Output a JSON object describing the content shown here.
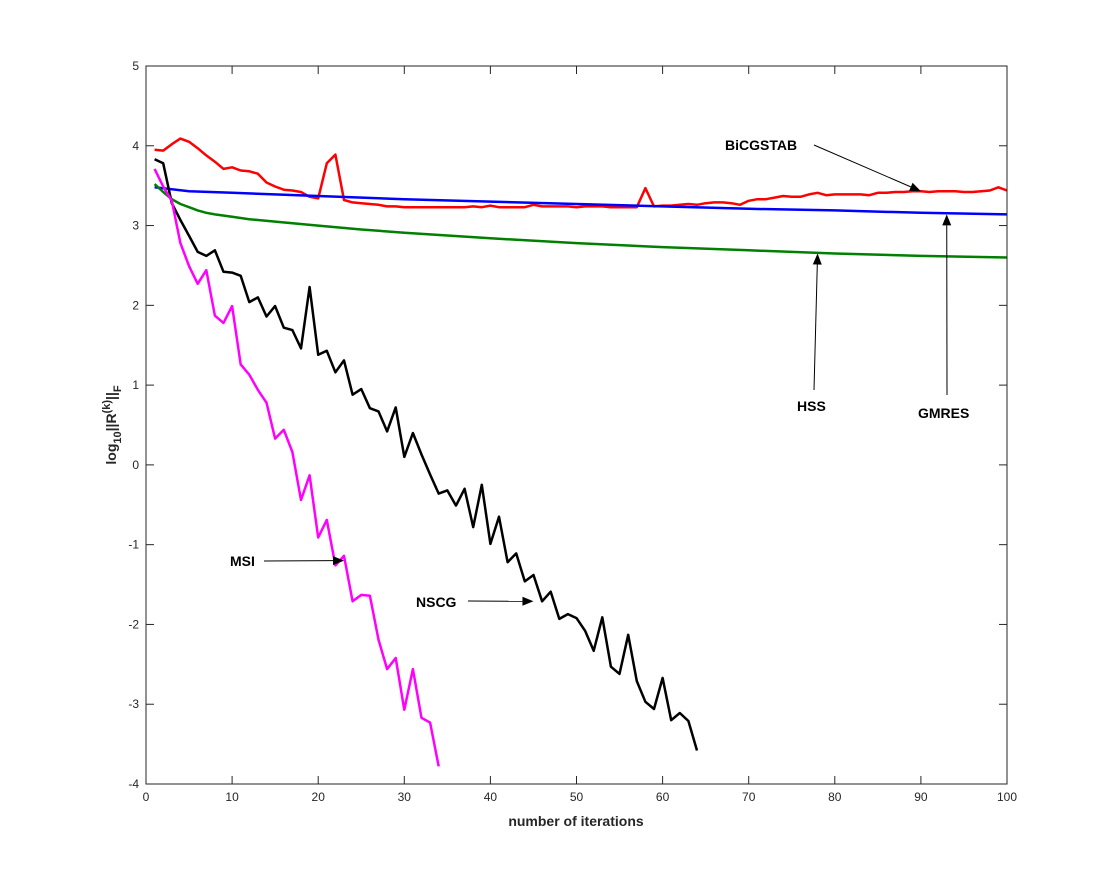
{
  "chart_data": {
    "type": "line",
    "xlabel": "number of iterations",
    "ylabel_base": "log",
    "ylabel_sub1": "10",
    "ylabel_mid": "||R",
    "ylabel_sup": "(k)",
    "ylabel_end": "||",
    "ylabel_sub2": "F",
    "xlim": [
      0,
      100
    ],
    "ylim": [
      -4,
      5
    ],
    "xticks": [
      0,
      10,
      20,
      30,
      40,
      50,
      60,
      70,
      80,
      90,
      100
    ],
    "yticks": [
      -4,
      -3,
      -2,
      -1,
      0,
      1,
      2,
      3,
      4,
      5
    ],
    "grid": false,
    "series": [
      {
        "name": "BiCGSTAB",
        "color": "#ff0000",
        "x": [
          1,
          2,
          3,
          4,
          5,
          6,
          7,
          8,
          9,
          10,
          11,
          12,
          13,
          14,
          15,
          16,
          17,
          18,
          19,
          20,
          21,
          22,
          23,
          24,
          25,
          26,
          27,
          28,
          29,
          30,
          31,
          32,
          33,
          34,
          35,
          36,
          37,
          38,
          39,
          40,
          41,
          42,
          43,
          44,
          45,
          46,
          47,
          48,
          49,
          50,
          51,
          52,
          53,
          54,
          55,
          56,
          57,
          58,
          59,
          60,
          61,
          62,
          63,
          64,
          65,
          66,
          67,
          68,
          69,
          70,
          71,
          72,
          73,
          74,
          75,
          76,
          77,
          78,
          79,
          80,
          81,
          82,
          83,
          84,
          85,
          86,
          87,
          88,
          89,
          90,
          91,
          92,
          93,
          94,
          95,
          96,
          97,
          98,
          99,
          100
        ],
        "y": [
          3.95,
          3.94,
          4.02,
          4.09,
          4.05,
          3.97,
          3.88,
          3.8,
          3.71,
          3.73,
          3.69,
          3.68,
          3.65,
          3.54,
          3.49,
          3.45,
          3.44,
          3.42,
          3.36,
          3.34,
          3.78,
          3.89,
          3.32,
          3.29,
          3.28,
          3.27,
          3.26,
          3.24,
          3.24,
          3.23,
          3.23,
          3.23,
          3.23,
          3.23,
          3.23,
          3.23,
          3.23,
          3.24,
          3.23,
          3.25,
          3.23,
          3.23,
          3.23,
          3.23,
          3.26,
          3.24,
          3.24,
          3.24,
          3.24,
          3.23,
          3.24,
          3.24,
          3.24,
          3.23,
          3.23,
          3.23,
          3.23,
          3.47,
          3.24,
          3.25,
          3.25,
          3.26,
          3.27,
          3.26,
          3.28,
          3.29,
          3.29,
          3.28,
          3.26,
          3.31,
          3.33,
          3.33,
          3.35,
          3.37,
          3.36,
          3.36,
          3.39,
          3.41,
          3.38,
          3.39,
          3.39,
          3.39,
          3.39,
          3.38,
          3.41,
          3.41,
          3.42,
          3.42,
          3.43,
          3.43,
          3.42,
          3.43,
          3.43,
          3.43,
          3.42,
          3.42,
          3.43,
          3.44,
          3.48,
          3.44
        ]
      },
      {
        "name": "GMRES",
        "color": "#0000ff",
        "x": [
          1,
          5,
          10,
          20,
          30,
          40,
          50,
          60,
          70,
          80,
          90,
          100
        ],
        "y": [
          3.48,
          3.43,
          3.41,
          3.37,
          3.33,
          3.3,
          3.27,
          3.24,
          3.21,
          3.19,
          3.16,
          3.14
        ]
      },
      {
        "name": "HSS",
        "color": "#008000",
        "x": [
          1,
          2,
          3,
          4,
          5,
          6,
          7,
          8,
          10,
          12,
          15,
          20,
          25,
          30,
          40,
          50,
          60,
          70,
          80,
          90,
          100
        ],
        "y": [
          3.52,
          3.42,
          3.33,
          3.27,
          3.23,
          3.19,
          3.16,
          3.14,
          3.11,
          3.08,
          3.05,
          3.0,
          2.95,
          2.91,
          2.84,
          2.78,
          2.73,
          2.69,
          2.65,
          2.62,
          2.6
        ]
      },
      {
        "name": "NSCG",
        "color": "#000000",
        "x": [
          1,
          2,
          3,
          4,
          5,
          6,
          7,
          8,
          9,
          10,
          11,
          12,
          13,
          14,
          15,
          16,
          17,
          18,
          19,
          20,
          21,
          22,
          23,
          24,
          25,
          26,
          27,
          28,
          29,
          30,
          31,
          32,
          33,
          34,
          35,
          36,
          37,
          38,
          39,
          40,
          41,
          42,
          43,
          44,
          45,
          46,
          47,
          48,
          49,
          50,
          51,
          52,
          53,
          54,
          55,
          56,
          57,
          58,
          59,
          60,
          61,
          62,
          63,
          64
        ],
        "y": [
          3.83,
          3.78,
          3.28,
          3.07,
          2.87,
          2.67,
          2.62,
          2.69,
          2.42,
          2.41,
          2.37,
          2.04,
          2.1,
          1.86,
          1.99,
          1.72,
          1.69,
          1.46,
          2.23,
          1.38,
          1.43,
          1.16,
          1.31,
          0.88,
          0.95,
          0.71,
          0.67,
          0.42,
          0.72,
          0.1,
          0.4,
          0.13,
          -0.12,
          -0.36,
          -0.32,
          -0.51,
          -0.3,
          -0.78,
          -0.25,
          -0.99,
          -0.65,
          -1.22,
          -1.11,
          -1.46,
          -1.38,
          -1.71,
          -1.59,
          -1.93,
          -1.87,
          -1.92,
          -2.08,
          -2.33,
          -1.91,
          -2.53,
          -2.62,
          -2.13,
          -2.71,
          -2.97,
          -3.06,
          -2.67,
          -3.2,
          -3.11,
          -3.21,
          -3.58
        ]
      },
      {
        "name": "MSI",
        "color": "#ff00ff",
        "x": [
          1,
          2,
          3,
          4,
          5,
          6,
          7,
          8,
          9,
          10,
          11,
          12,
          13,
          14,
          15,
          16,
          17,
          18,
          19,
          20,
          21,
          22,
          23,
          24,
          25,
          26,
          27,
          28,
          29,
          30,
          31,
          32,
          33,
          34
        ],
        "y": [
          3.71,
          3.49,
          3.31,
          2.78,
          2.49,
          2.27,
          2.44,
          1.87,
          1.78,
          1.99,
          1.26,
          1.13,
          0.94,
          0.78,
          0.33,
          0.44,
          0.16,
          -0.44,
          -0.13,
          -0.91,
          -0.69,
          -1.26,
          -1.14,
          -1.71,
          -1.63,
          -1.64,
          -2.19,
          -2.56,
          -2.42,
          -3.07,
          -2.56,
          -3.17,
          -3.23,
          -3.78
        ]
      }
    ],
    "annotations": [
      {
        "text": "BiCGSTAB",
        "target": [
          90,
          3.43
        ]
      },
      {
        "text": "GMRES",
        "target": [
          93,
          3.14
        ]
      },
      {
        "text": "HSS",
        "target": [
          78,
          2.65
        ]
      },
      {
        "text": "NSCG",
        "target": [
          45,
          -1.71
        ]
      },
      {
        "text": "MSI",
        "target": [
          23,
          -1.2
        ]
      }
    ]
  }
}
